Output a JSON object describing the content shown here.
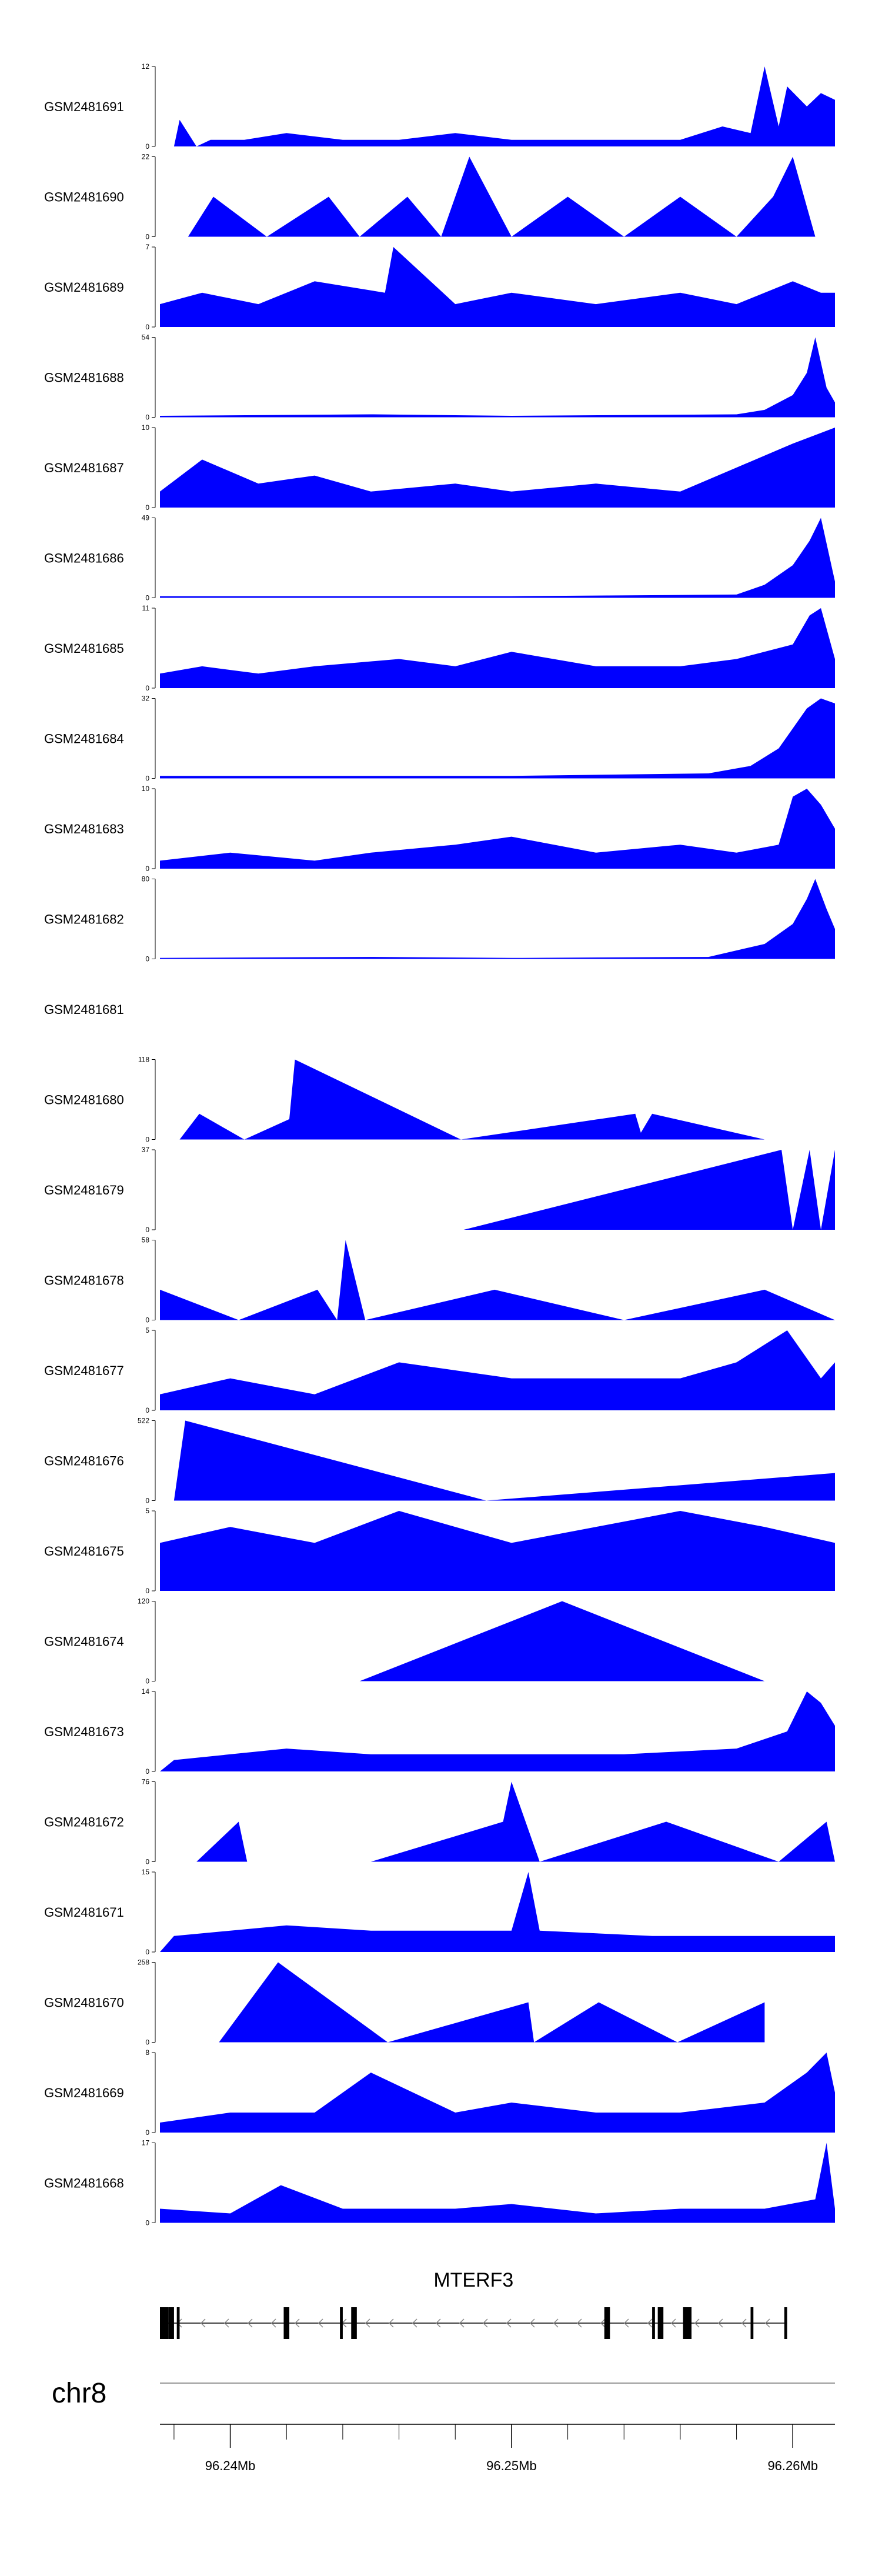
{
  "chart_data": {
    "type": "area",
    "title": "",
    "chromosome": "chr8",
    "region": [
      96.2375,
      96.2615
    ],
    "genome_axis": {
      "ticks": [
        96.24,
        96.25,
        96.26
      ],
      "tick_labels": [
        "96.24Mb",
        "96.25Mb",
        "96.26Mb"
      ]
    },
    "gene": {
      "name": "MTERF3",
      "strand": "-",
      "start": 96.2375,
      "end": 96.2598,
      "exons": [
        [
          96.2375,
          96.2378
        ],
        [
          96.2378,
          96.238
        ],
        [
          96.2381,
          96.2382
        ],
        [
          96.2419,
          96.2421
        ],
        [
          96.2439,
          96.244
        ],
        [
          96.2443,
          96.2445
        ],
        [
          96.2533,
          96.2535
        ],
        [
          96.255,
          96.2551
        ],
        [
          96.2552,
          96.2554
        ],
        [
          96.2561,
          96.2564
        ],
        [
          96.2585,
          96.2586
        ],
        [
          96.2597,
          96.2598
        ]
      ]
    },
    "tracks": [
      {
        "name": "GSM2481691",
        "ymax": 12,
        "x": [
          96.2375,
          96.238,
          96.2382,
          96.2388,
          96.2393,
          96.2405,
          96.242,
          96.244,
          96.246,
          96.248,
          96.25,
          96.252,
          96.254,
          96.256,
          96.2575,
          96.2585,
          96.259,
          96.2595,
          96.2598,
          96.2605,
          96.261,
          96.2615
        ],
        "y": [
          0,
          0,
          4,
          0,
          1,
          1,
          2,
          1,
          1,
          2,
          1,
          1,
          1,
          1,
          3,
          2,
          12,
          3,
          9,
          6,
          8,
          7
        ]
      },
      {
        "name": "GSM2481690",
        "ymax": 22,
        "x": [
          96.2375,
          96.2385,
          96.2394,
          96.2413,
          96.2435,
          96.2446,
          96.2463,
          96.2475,
          96.2485,
          96.25,
          96.252,
          96.254,
          96.256,
          96.258,
          96.2593,
          96.26,
          96.2608,
          96.2615
        ],
        "y": [
          0,
          0,
          11,
          0,
          11,
          0,
          11,
          0,
          22,
          0,
          11,
          0,
          11,
          0,
          11,
          22,
          0,
          0
        ]
      },
      {
        "name": "GSM2481689",
        "ymax": 7,
        "x": [
          96.2375,
          96.239,
          96.241,
          96.243,
          96.2455,
          96.2458,
          96.248,
          96.25,
          96.253,
          96.256,
          96.258,
          96.26,
          96.261,
          96.2615
        ],
        "y": [
          2,
          3,
          2,
          4,
          3,
          7,
          2,
          3,
          2,
          3,
          2,
          4,
          3,
          3
        ]
      },
      {
        "name": "GSM2481688",
        "ymax": 54,
        "x": [
          96.2375,
          96.245,
          96.25,
          96.258,
          96.259,
          96.26,
          96.2605,
          96.2608,
          96.2612,
          96.2615
        ],
        "y": [
          1,
          2,
          1,
          2,
          5,
          15,
          30,
          54,
          20,
          10
        ]
      },
      {
        "name": "GSM2481687",
        "ymax": 10,
        "x": [
          96.2375,
          96.239,
          96.241,
          96.243,
          96.245,
          96.248,
          96.25,
          96.253,
          96.256,
          96.258,
          96.26,
          96.2615
        ],
        "y": [
          2,
          6,
          3,
          4,
          2,
          3,
          2,
          3,
          2,
          5,
          8,
          10
        ]
      },
      {
        "name": "GSM2481686",
        "ymax": 49,
        "x": [
          96.2375,
          96.245,
          96.25,
          96.258,
          96.259,
          96.26,
          96.2606,
          96.261,
          96.2615
        ],
        "y": [
          1,
          1,
          1,
          2,
          8,
          20,
          35,
          49,
          10
        ]
      },
      {
        "name": "GSM2481685",
        "ymax": 11,
        "x": [
          96.2375,
          96.239,
          96.241,
          96.243,
          96.246,
          96.248,
          96.25,
          96.253,
          96.256,
          96.258,
          96.26,
          96.2606,
          96.261,
          96.2615
        ],
        "y": [
          2,
          3,
          2,
          3,
          4,
          3,
          5,
          3,
          3,
          4,
          6,
          10,
          11,
          4
        ]
      },
      {
        "name": "GSM2481684",
        "ymax": 32,
        "x": [
          96.2375,
          96.245,
          96.25,
          96.257,
          96.2585,
          96.2595,
          96.26,
          96.2605,
          96.261,
          96.2615
        ],
        "y": [
          1,
          1,
          1,
          2,
          5,
          12,
          20,
          28,
          32,
          30
        ]
      },
      {
        "name": "GSM2481683",
        "ymax": 10,
        "x": [
          96.2375,
          96.24,
          96.243,
          96.245,
          96.248,
          96.25,
          96.253,
          96.256,
          96.258,
          96.2595,
          96.26,
          96.2605,
          96.261,
          96.2615
        ],
        "y": [
          1,
          2,
          1,
          2,
          3,
          4,
          2,
          3,
          2,
          3,
          9,
          10,
          8,
          5
        ]
      },
      {
        "name": "GSM2481682",
        "ymax": 80,
        "x": [
          96.2375,
          96.245,
          96.25,
          96.257,
          96.259,
          96.26,
          96.2605,
          96.2608,
          96.2612,
          96.2615
        ],
        "y": [
          1,
          2,
          1,
          2,
          15,
          35,
          60,
          80,
          50,
          30
        ]
      },
      {
        "name": "GSM2481681",
        "ymax": null,
        "x": [],
        "y": []
      },
      {
        "name": "GSM2481680",
        "ymax": 118,
        "x": [
          96.2375,
          96.2382,
          96.2389,
          96.2405,
          96.2421,
          96.2423,
          96.2482,
          96.2544,
          96.2546,
          96.255,
          96.259
        ],
        "y": [
          0,
          0,
          38,
          0,
          30,
          118,
          0,
          38,
          10,
          38,
          0
        ]
      },
      {
        "name": "GSM2481679",
        "ymax": 37,
        "x": [
          96.2375,
          96.2483,
          96.2596,
          96.26,
          96.2606,
          96.261,
          96.2615
        ],
        "y": [
          0,
          0,
          37,
          0,
          37,
          0,
          37
        ]
      },
      {
        "name": "GSM2481678",
        "ymax": 58,
        "x": [
          96.2375,
          96.2403,
          96.2431,
          96.2438,
          96.2441,
          96.2448,
          96.2494,
          96.254,
          96.259,
          96.2615
        ],
        "y": [
          22,
          0,
          22,
          0,
          58,
          0,
          22,
          0,
          22,
          0
        ]
      },
      {
        "name": "GSM2481677",
        "ymax": 5,
        "x": [
          96.2375,
          96.24,
          96.243,
          96.246,
          96.25,
          96.253,
          96.256,
          96.258,
          96.2598,
          96.261,
          96.2615
        ],
        "y": [
          1,
          2,
          1,
          3,
          2,
          2,
          2,
          3,
          5,
          2,
          3
        ]
      },
      {
        "name": "GSM2481676",
        "ymax": 522,
        "x": [
          96.2375,
          96.238,
          96.2384,
          96.2491,
          96.2615
        ],
        "y": [
          0,
          0,
          522,
          0,
          180
        ]
      },
      {
        "name": "GSM2481675",
        "ymax": 5,
        "x": [
          96.2375,
          96.24,
          96.243,
          96.246,
          96.25,
          96.253,
          96.256,
          96.259,
          96.2615
        ],
        "y": [
          3,
          4,
          3,
          5,
          3,
          4,
          5,
          4,
          3
        ]
      },
      {
        "name": "GSM2481674",
        "ymax": 120,
        "x": [
          96.2375,
          96.2446,
          96.2518,
          96.259,
          96.2615
        ],
        "y": [
          0,
          0,
          120,
          0,
          0
        ]
      },
      {
        "name": "GSM2481673",
        "ymax": 14,
        "x": [
          96.2375,
          96.238,
          96.242,
          96.245,
          96.25,
          96.254,
          96.258,
          96.2598,
          96.2605,
          96.261,
          96.2615
        ],
        "y": [
          0,
          2,
          4,
          3,
          3,
          3,
          4,
          7,
          14,
          12,
          8
        ]
      },
      {
        "name": "GSM2481672",
        "ymax": 76,
        "x": [
          96.2375,
          96.2388,
          96.2403,
          96.2406,
          96.245,
          96.2497,
          96.25,
          96.251,
          96.2555,
          96.2595,
          96.2612,
          96.2615
        ],
        "y": [
          0,
          0,
          38,
          0,
          0,
          38,
          76,
          0,
          38,
          0,
          38,
          0
        ]
      },
      {
        "name": "GSM2481671",
        "ymax": 15,
        "x": [
          96.2375,
          96.238,
          96.242,
          96.245,
          96.25,
          96.2506,
          96.251,
          96.255,
          96.258,
          96.2615
        ],
        "y": [
          0,
          3,
          5,
          4,
          4,
          15,
          4,
          3,
          3,
          3
        ]
      },
      {
        "name": "GSM2481670",
        "ymax": 258,
        "x": [
          96.2375,
          96.2396,
          96.2417,
          96.2456,
          96.2506,
          96.2508,
          96.2531,
          96.2559,
          96.259
        ],
        "y": [
          0,
          0,
          258,
          0,
          129,
          0,
          129,
          0,
          129
        ]
      },
      {
        "name": "GSM2481669",
        "ymax": 8,
        "x": [
          96.2375,
          96.24,
          96.243,
          96.245,
          96.248,
          96.25,
          96.253,
          96.256,
          96.259,
          96.2605,
          96.2612,
          96.2615
        ],
        "y": [
          1,
          2,
          2,
          6,
          2,
          3,
          2,
          2,
          3,
          6,
          8,
          4
        ]
      },
      {
        "name": "GSM2481668",
        "ymax": 17,
        "x": [
          96.2375,
          96.24,
          96.2418,
          96.244,
          96.248,
          96.25,
          96.253,
          96.256,
          96.259,
          96.2608,
          96.2612,
          96.2615
        ],
        "y": [
          3,
          2,
          8,
          3,
          3,
          4,
          2,
          3,
          3,
          5,
          17,
          3
        ]
      }
    ]
  }
}
